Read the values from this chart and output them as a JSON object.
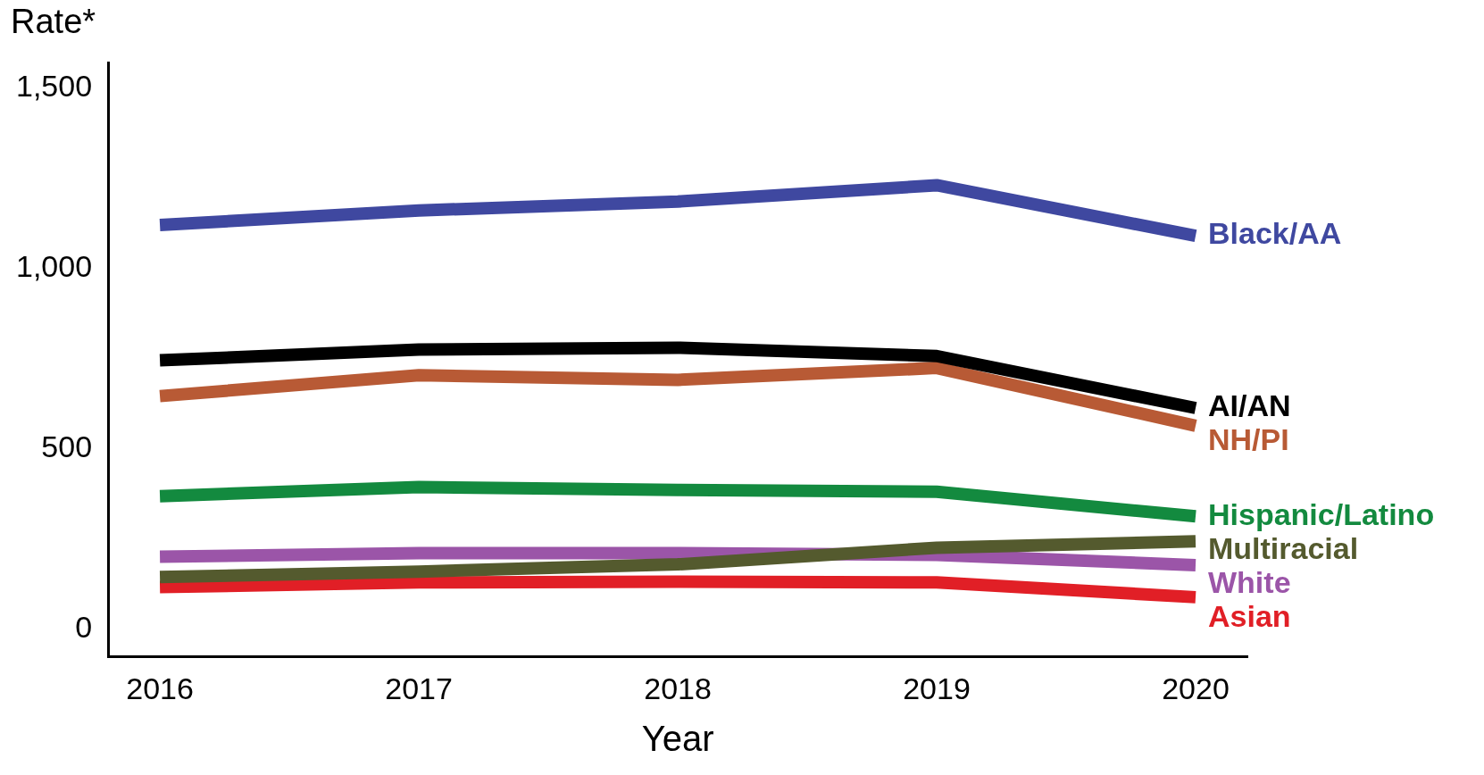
{
  "chart_data": {
    "type": "line",
    "xlabel": "Year",
    "ylabel": "Rate*",
    "x": [
      2016,
      2017,
      2018,
      2019,
      2020
    ],
    "xlim": [
      2015.8,
      2020.2
    ],
    "xticks": [
      2016,
      2017,
      2018,
      2019,
      2020
    ],
    "ylim": [
      -75,
      1570
    ],
    "yticks": [
      0,
      {
        "value": 500,
        "label": "500"
      },
      {
        "value": 1000,
        "label": "1,000"
      },
      {
        "value": 1500,
        "label": "1,500"
      }
    ],
    "grid": false,
    "legend": false,
    "marker": "none",
    "line_style": "solid",
    "series": [
      {
        "name": "Black/AA",
        "color": "#3f48a0",
        "values": [
          1120,
          1160,
          1185,
          1230,
          1090
        ]
      },
      {
        "name": "AI/AN",
        "color": "#000000",
        "values": [
          745,
          775,
          780,
          757,
          613
        ]
      },
      {
        "name": "NH/PI",
        "color": "#b85a35",
        "values": [
          646,
          704,
          691,
          724,
          564
        ]
      },
      {
        "name": "Hispanic/Latino",
        "color": "#138a3f",
        "values": [
          369,
          394,
          386,
          381,
          313
        ]
      },
      {
        "name": "Multiracial",
        "color": "#545a2e",
        "values": [
          145,
          160,
          180,
          226,
          244
        ]
      },
      {
        "name": "White",
        "color": "#9b55a8",
        "values": [
          201,
          211,
          211,
          206,
          178
        ]
      },
      {
        "name": "Asian",
        "color": "#e11f26",
        "values": [
          117,
          130,
          132,
          130,
          89
        ]
      }
    ]
  }
}
